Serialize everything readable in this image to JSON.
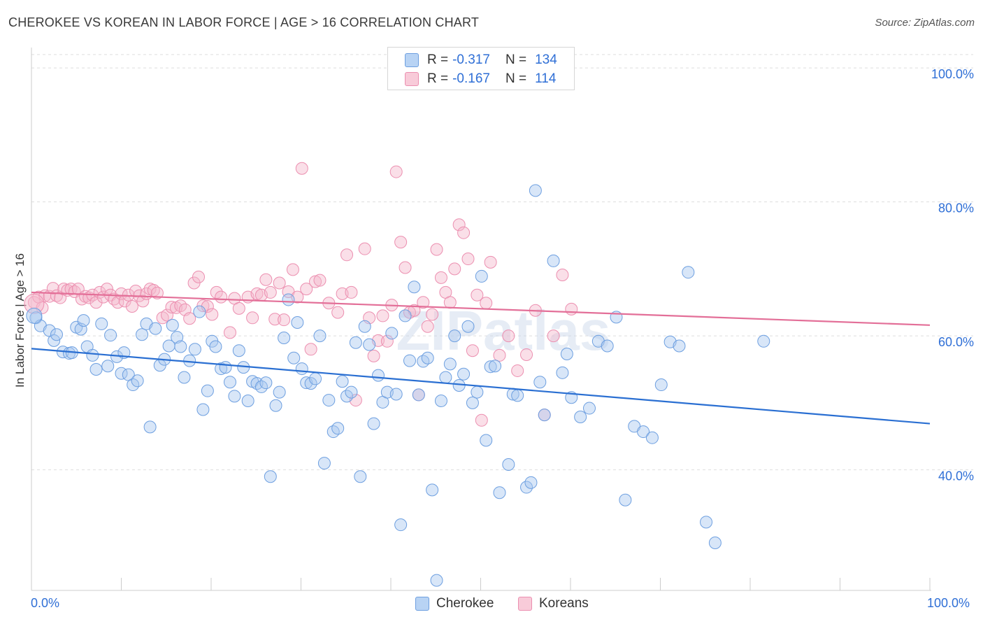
{
  "title": "CHEROKEE VS KOREAN IN LABOR FORCE | AGE > 16 CORRELATION CHART",
  "source": "Source: ZipAtlas.com",
  "watermark": "ZIPatlas",
  "legend_top": {
    "rows": [
      {
        "r_label": "R = ",
        "r_value": "-0.317",
        "n_label": "N = ",
        "n_value": "134"
      },
      {
        "r_label": "R = ",
        "r_value": "-0.167",
        "n_label": "N = ",
        "n_value": "114"
      }
    ]
  },
  "legend_bottom": [
    "Cherokee",
    "Koreans"
  ],
  "colors": {
    "cherokee_fill": "#a8c8f0",
    "cherokee_stroke": "#6d9fe0",
    "cherokee_line": "#2a6fd2",
    "korean_fill": "#f5b8cc",
    "korean_stroke": "#ec8fb0",
    "korean_line": "#e36f98",
    "axis_text": "#2f6fd6",
    "grid": "#dddddd"
  },
  "chart_data": {
    "type": "scatter",
    "title": "CHEROKEE VS KOREAN IN LABOR FORCE | AGE > 16 CORRELATION CHART",
    "xlabel": "",
    "ylabel": "In Labor Force | Age > 16",
    "xlim": [
      0,
      100
    ],
    "ylim": [
      22,
      102
    ],
    "x_tick_labels": [
      "0.0%",
      "100.0%"
    ],
    "y_ticks": [
      40,
      60,
      80,
      100
    ],
    "y_tick_labels": [
      "40.0%",
      "60.0%",
      "80.0%",
      "100.0%"
    ],
    "grid": true,
    "legend_placement": "bottom-center",
    "series": [
      {
        "name": "Cherokee",
        "r": -0.317,
        "n": 134,
        "trend": {
          "x": [
            0,
            100
          ],
          "y": [
            58.1,
            46.9
          ]
        },
        "points": [
          [
            0.5,
            62.7
          ],
          [
            1.0,
            61.5
          ],
          [
            2.0,
            60.8
          ],
          [
            2.5,
            59.3
          ],
          [
            2.8,
            60.2
          ],
          [
            3.5,
            57.6
          ],
          [
            4.2,
            57.4
          ],
          [
            4.5,
            57.5
          ],
          [
            5.0,
            61.3
          ],
          [
            5.5,
            61.0
          ],
          [
            5.8,
            62.3
          ],
          [
            6.2,
            58.4
          ],
          [
            6.8,
            57.1
          ],
          [
            7.2,
            55.0
          ],
          [
            7.8,
            61.8
          ],
          [
            8.5,
            55.5
          ],
          [
            8.8,
            60.1
          ],
          [
            9.5,
            56.9
          ],
          [
            10.0,
            54.4
          ],
          [
            10.3,
            57.5
          ],
          [
            10.8,
            54.2
          ],
          [
            11.3,
            52.7
          ],
          [
            11.8,
            53.3
          ],
          [
            12.3,
            60.2
          ],
          [
            12.8,
            61.8
          ],
          [
            13.2,
            46.4
          ],
          [
            13.8,
            61.1
          ],
          [
            14.3,
            55.6
          ],
          [
            14.8,
            56.5
          ],
          [
            15.3,
            58.5
          ],
          [
            15.7,
            61.6
          ],
          [
            16.2,
            59.8
          ],
          [
            16.6,
            58.4
          ],
          [
            17.0,
            53.8
          ],
          [
            17.6,
            56.3
          ],
          [
            18.2,
            58.0
          ],
          [
            18.7,
            63.6
          ],
          [
            19.1,
            49.0
          ],
          [
            19.6,
            51.8
          ],
          [
            20.1,
            59.2
          ],
          [
            20.5,
            58.4
          ],
          [
            21.1,
            55.1
          ],
          [
            21.6,
            55.3
          ],
          [
            22.1,
            53.1
          ],
          [
            22.6,
            51.0
          ],
          [
            23.1,
            57.8
          ],
          [
            23.6,
            55.3
          ],
          [
            24.1,
            50.3
          ],
          [
            24.6,
            53.2
          ],
          [
            25.1,
            52.9
          ],
          [
            25.6,
            52.4
          ],
          [
            26.1,
            53.0
          ],
          [
            26.6,
            39.0
          ],
          [
            27.2,
            49.6
          ],
          [
            27.6,
            51.6
          ],
          [
            28.1,
            59.7
          ],
          [
            28.6,
            65.4
          ],
          [
            29.2,
            56.7
          ],
          [
            29.6,
            62.0
          ],
          [
            30.1,
            55.1
          ],
          [
            30.6,
            53.0
          ],
          [
            31.1,
            52.9
          ],
          [
            31.6,
            53.6
          ],
          [
            32.1,
            60.0
          ],
          [
            32.6,
            41.0
          ],
          [
            33.1,
            50.4
          ],
          [
            33.6,
            45.7
          ],
          [
            34.1,
            46.2
          ],
          [
            34.6,
            53.2
          ],
          [
            35.1,
            51.0
          ],
          [
            35.6,
            51.6
          ],
          [
            36.1,
            59.0
          ],
          [
            36.6,
            39.0
          ],
          [
            37.1,
            61.4
          ],
          [
            37.6,
            58.7
          ],
          [
            38.1,
            46.9
          ],
          [
            38.6,
            54.1
          ],
          [
            39.1,
            50.1
          ],
          [
            39.6,
            51.6
          ],
          [
            40.1,
            60.4
          ],
          [
            40.6,
            51.3
          ],
          [
            41.1,
            31.8
          ],
          [
            41.6,
            63.0
          ],
          [
            42.1,
            56.3
          ],
          [
            42.6,
            67.3
          ],
          [
            43.1,
            51.2
          ],
          [
            43.6,
            56.2
          ],
          [
            44.1,
            56.7
          ],
          [
            44.6,
            37.0
          ],
          [
            45.1,
            23.5
          ],
          [
            45.6,
            50.3
          ],
          [
            46.1,
            53.8
          ],
          [
            46.6,
            55.8
          ],
          [
            47.1,
            60.0
          ],
          [
            47.6,
            52.6
          ],
          [
            48.1,
            54.3
          ],
          [
            48.6,
            61.4
          ],
          [
            49.1,
            50.0
          ],
          [
            49.6,
            51.6
          ],
          [
            50.1,
            68.9
          ],
          [
            50.6,
            44.4
          ],
          [
            51.1,
            55.4
          ],
          [
            51.6,
            55.5
          ],
          [
            52.1,
            36.6
          ],
          [
            53.1,
            40.8
          ],
          [
            53.6,
            51.3
          ],
          [
            54.1,
            51.1
          ],
          [
            55.1,
            37.4
          ],
          [
            55.6,
            38.1
          ],
          [
            56.1,
            81.7
          ],
          [
            56.6,
            53.1
          ],
          [
            57.1,
            48.2
          ],
          [
            58.1,
            71.2
          ],
          [
            59.1,
            54.5
          ],
          [
            59.6,
            57.3
          ],
          [
            60.1,
            50.8
          ],
          [
            61.1,
            47.9
          ],
          [
            62.1,
            49.2
          ],
          [
            63.1,
            59.2
          ],
          [
            64.1,
            58.5
          ],
          [
            65.1,
            62.8
          ],
          [
            66.1,
            35.5
          ],
          [
            67.1,
            46.5
          ],
          [
            68.1,
            45.7
          ],
          [
            69.1,
            44.8
          ],
          [
            70.1,
            52.7
          ],
          [
            71.1,
            59.1
          ],
          [
            72.1,
            58.5
          ],
          [
            73.1,
            69.5
          ],
          [
            75.1,
            32.2
          ],
          [
            76.1,
            29.1
          ],
          [
            81.5,
            59.2
          ]
        ]
      },
      {
        "name": "Koreans",
        "r": -0.167,
        "n": 114,
        "trend": {
          "x": [
            0,
            100
          ],
          "y": [
            66.5,
            61.6
          ]
        },
        "points": [
          [
            0.3,
            65.0
          ],
          [
            0.8,
            65.8
          ],
          [
            1.2,
            64.2
          ],
          [
            1.5,
            66.0
          ],
          [
            2.0,
            65.9
          ],
          [
            2.4,
            67.1
          ],
          [
            2.8,
            66.0
          ],
          [
            3.2,
            65.7
          ],
          [
            3.6,
            67.0
          ],
          [
            4.0,
            66.8
          ],
          [
            4.4,
            67.0
          ],
          [
            4.8,
            66.6
          ],
          [
            5.2,
            67.0
          ],
          [
            5.6,
            65.5
          ],
          [
            6.0,
            65.9
          ],
          [
            6.4,
            65.7
          ],
          [
            6.8,
            66.1
          ],
          [
            7.2,
            65.0
          ],
          [
            7.6,
            66.5
          ],
          [
            8.0,
            65.8
          ],
          [
            8.4,
            67.0
          ],
          [
            8.8,
            66.1
          ],
          [
            9.2,
            65.5
          ],
          [
            9.6,
            65.0
          ],
          [
            10.0,
            66.3
          ],
          [
            10.4,
            65.2
          ],
          [
            10.8,
            66.1
          ],
          [
            11.2,
            64.4
          ],
          [
            11.6,
            66.7
          ],
          [
            12.0,
            66.0
          ],
          [
            12.4,
            65.2
          ],
          [
            12.8,
            66.3
          ],
          [
            13.2,
            67.0
          ],
          [
            13.6,
            66.8
          ],
          [
            14.0,
            66.4
          ],
          [
            14.6,
            62.7
          ],
          [
            15.1,
            63.1
          ],
          [
            15.6,
            64.3
          ],
          [
            16.1,
            64.2
          ],
          [
            16.6,
            64.5
          ],
          [
            17.1,
            63.9
          ],
          [
            17.6,
            62.6
          ],
          [
            18.1,
            67.9
          ],
          [
            18.6,
            68.8
          ],
          [
            19.1,
            64.5
          ],
          [
            19.6,
            64.4
          ],
          [
            20.1,
            63.2
          ],
          [
            20.6,
            66.5
          ],
          [
            21.1,
            65.8
          ],
          [
            22.1,
            60.5
          ],
          [
            22.6,
            65.6
          ],
          [
            23.1,
            64.1
          ],
          [
            24.1,
            65.8
          ],
          [
            24.6,
            62.7
          ],
          [
            25.1,
            66.3
          ],
          [
            25.6,
            66.1
          ],
          [
            26.1,
            68.4
          ],
          [
            26.6,
            66.5
          ],
          [
            27.1,
            62.5
          ],
          [
            27.6,
            67.9
          ],
          [
            28.1,
            62.4
          ],
          [
            28.6,
            66.6
          ],
          [
            29.1,
            69.9
          ],
          [
            29.6,
            65.8
          ],
          [
            30.1,
            85.0
          ],
          [
            30.6,
            67.0
          ],
          [
            31.1,
            58.0
          ],
          [
            31.6,
            68.1
          ],
          [
            32.1,
            68.3
          ],
          [
            33.1,
            64.9
          ],
          [
            34.1,
            63.5
          ],
          [
            34.6,
            66.3
          ],
          [
            35.1,
            72.1
          ],
          [
            35.6,
            66.5
          ],
          [
            36.1,
            50.4
          ],
          [
            37.1,
            73.0
          ],
          [
            37.6,
            62.7
          ],
          [
            38.1,
            57.0
          ],
          [
            38.6,
            59.3
          ],
          [
            39.1,
            63.0
          ],
          [
            39.6,
            59.2
          ],
          [
            40.1,
            64.6
          ],
          [
            40.6,
            84.5
          ],
          [
            41.1,
            74.0
          ],
          [
            41.6,
            70.2
          ],
          [
            42.1,
            63.5
          ],
          [
            42.6,
            63.8
          ],
          [
            43.1,
            51.2
          ],
          [
            43.6,
            65.0
          ],
          [
            44.1,
            61.4
          ],
          [
            44.6,
            63.2
          ],
          [
            45.1,
            72.9
          ],
          [
            45.6,
            68.7
          ],
          [
            46.1,
            66.5
          ],
          [
            46.6,
            65.0
          ],
          [
            47.1,
            70.0
          ],
          [
            47.6,
            76.6
          ],
          [
            48.1,
            75.4
          ],
          [
            48.6,
            71.5
          ],
          [
            49.1,
            57.8
          ],
          [
            49.6,
            66.1
          ],
          [
            50.1,
            47.4
          ],
          [
            50.6,
            64.9
          ],
          [
            51.1,
            71.0
          ],
          [
            52.1,
            57.1
          ],
          [
            53.1,
            60.0
          ],
          [
            54.1,
            54.8
          ],
          [
            55.1,
            57.2
          ],
          [
            56.1,
            63.8
          ],
          [
            57.1,
            48.2
          ],
          [
            58.1,
            60.0
          ],
          [
            59.1,
            69.1
          ],
          [
            60.1,
            64.0
          ]
        ]
      }
    ]
  }
}
